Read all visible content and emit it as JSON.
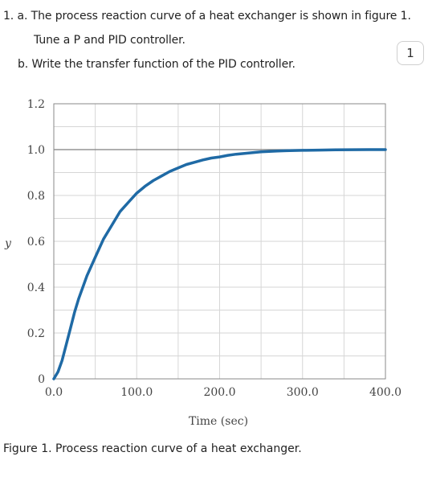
{
  "question": {
    "line1": "1. a. The process reaction curve of a heat exchanger is shown in figure 1.",
    "line2": "Tune a P and PID controller.",
    "line3": "b. Write the transfer function of the PID controller."
  },
  "page_badge": "1",
  "caption": "Figure 1. Process reaction curve of a heat exchanger.",
  "colors": {
    "curve": "#1f6aa5",
    "grid": "#d6d6d6",
    "reference_line": "#7f7f7f",
    "axis": "#8a8a8a"
  },
  "chart_data": {
    "type": "line",
    "title": "",
    "xlabel": "Time (sec)",
    "ylabel": "y",
    "xlim": [
      0,
      400
    ],
    "ylim": [
      0,
      1.2
    ],
    "x_ticks": [
      0,
      100,
      200,
      300,
      400
    ],
    "x_tick_labels": [
      "0.0",
      "100.0",
      "200.0",
      "300.0",
      "400.0"
    ],
    "y_ticks": [
      0,
      0.2,
      0.4,
      0.6,
      0.8,
      1.0,
      1.2
    ],
    "y_tick_labels": [
      "0",
      "0.2",
      "0.4",
      "0.6",
      "0.8",
      "1.0",
      "1.2"
    ],
    "x_minor_gridlines": [
      50,
      150,
      250,
      350
    ],
    "y_minor_gridlines": [
      0.1,
      0.3,
      0.5,
      0.7,
      0.9,
      1.1
    ],
    "grid": true,
    "reference_line_y": 1.0,
    "series": [
      {
        "x": [
          0,
          5,
          10,
          15,
          20,
          25,
          30,
          40,
          50,
          60,
          70,
          80,
          90,
          100,
          110,
          120,
          130,
          140,
          150,
          160,
          170,
          180,
          190,
          200,
          210,
          220,
          230,
          240,
          250,
          260,
          270,
          280,
          290,
          300,
          320,
          340,
          360,
          380,
          400
        ],
        "values": [
          0,
          0.03,
          0.08,
          0.15,
          0.22,
          0.29,
          0.35,
          0.45,
          0.53,
          0.61,
          0.67,
          0.73,
          0.77,
          0.81,
          0.84,
          0.865,
          0.885,
          0.905,
          0.92,
          0.935,
          0.945,
          0.955,
          0.963,
          0.968,
          0.975,
          0.98,
          0.983,
          0.987,
          0.99,
          0.992,
          0.994,
          0.995,
          0.996,
          0.997,
          0.998,
          0.999,
          0.9995,
          1.0,
          1.0
        ]
      }
    ]
  }
}
